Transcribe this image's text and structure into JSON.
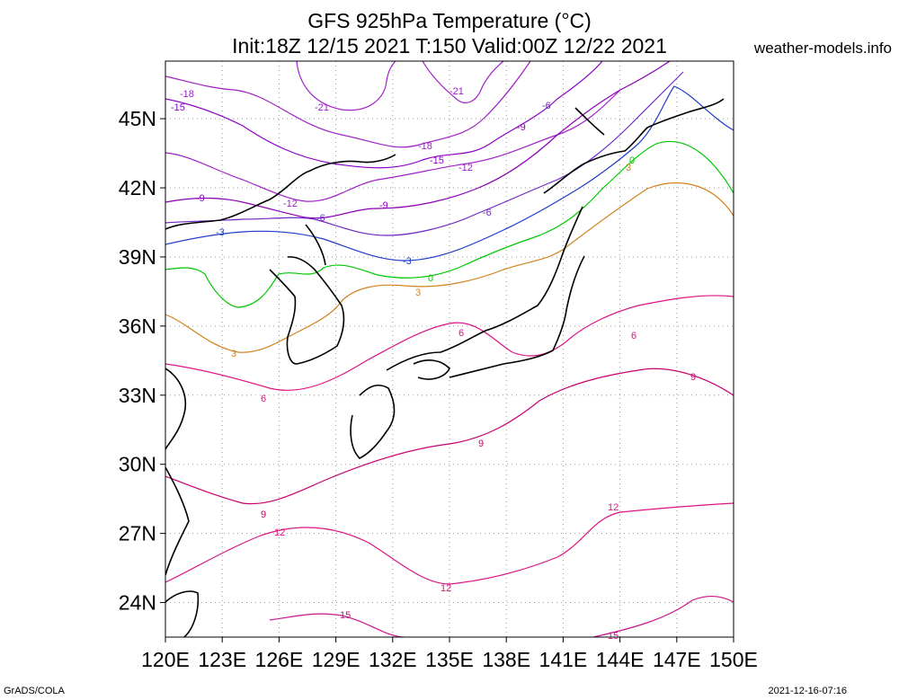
{
  "title_line1": "GFS 925hPa Temperature (°C)",
  "title_line2": "Init:18Z 12/15 2021 T:150 Valid:00Z 12/22 2021",
  "source_label": "weather-models.info",
  "software_label": "GrADS/COLA",
  "timestamp": "2021-12-16-07:16",
  "map": {
    "lon_range": [
      120,
      150
    ],
    "lat_range": [
      22.5,
      47.5
    ],
    "lat_ticks": [
      "45N",
      "42N",
      "39N",
      "36N",
      "33N",
      "30N",
      "27N",
      "24N"
    ],
    "lon_ticks": [
      "120E",
      "123E",
      "126E",
      "129E",
      "132E",
      "135E",
      "138E",
      "141E",
      "144E",
      "147E",
      "150E"
    ],
    "contour_labels": [
      "-21",
      "-21",
      "-18",
      "-18",
      "-15",
      "-15",
      "-12",
      "-12",
      "-9",
      "-9",
      "-9",
      "-6",
      "-6",
      "-6",
      "-3",
      "-3",
      "0",
      "0",
      "3",
      "3",
      "3",
      "6",
      "6",
      "6",
      "9",
      "9",
      "9",
      "12",
      "12",
      "12",
      "15",
      "15"
    ],
    "contour_colors": {
      "-21": "#a020c8",
      "-18": "#a020c8",
      "-15": "#8c00c8",
      "-12": "#a020c8",
      "-9": "#8c00b4",
      "-6": "#6e28c8",
      "-3": "#1e3cc8",
      "0": "#00c800",
      "3": "#d2821e",
      "6": "#dc1482",
      "9": "#c8006e",
      "12": "#dc1482",
      "15": "#c8148c"
    },
    "grid": "dotted"
  }
}
